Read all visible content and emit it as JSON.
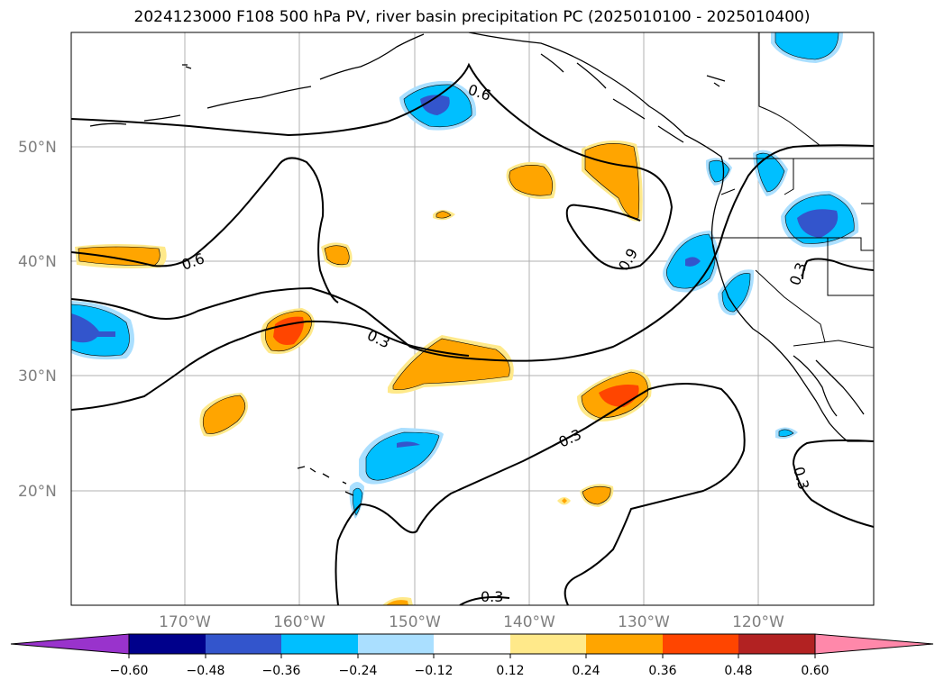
{
  "title": "2024123000 F108 500 hPa PV, river basin precipitation PC (2025010100 - 2025010400)",
  "lat_labels": [
    "50°N",
    "40°N",
    "30°N",
    "20°N"
  ],
  "lon_labels": [
    "170°W",
    "160°W",
    "150°W",
    "140°W",
    "130°W",
    "120°W"
  ],
  "contour_labels": [
    "0.6",
    "0.6",
    "0.3",
    "0.3",
    "0.3",
    "0.3",
    "0.9",
    "0.3"
  ],
  "colorbar": {
    "tick_labels": [
      "−0.60",
      "−0.48",
      "−0.36",
      "−0.24",
      "−0.12",
      "0.12",
      "0.24",
      "0.36",
      "0.48",
      "0.60"
    ],
    "colors": [
      "#9933cc",
      "#00008b",
      "#3355cc",
      "#00bfff",
      "#aadfff",
      "#ffffff",
      "#ffe98a",
      "#ffa500",
      "#ff4500",
      "#b22222",
      "#ff88aa"
    ]
  }
}
